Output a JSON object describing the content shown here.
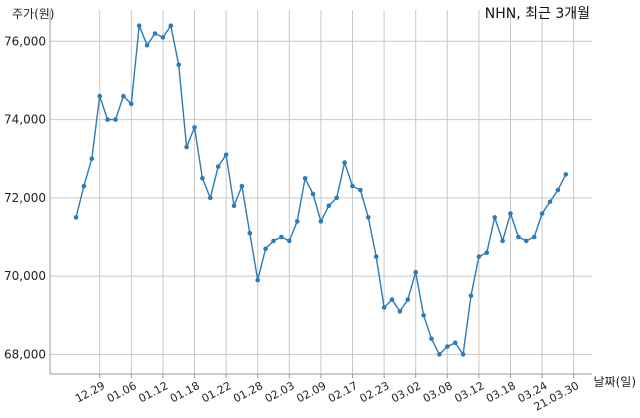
{
  "chart_data": {
    "type": "line",
    "title": "NHN, 최근 3개월",
    "ylabel": "주가(원)",
    "xlabel": "날짜(일)",
    "ylim": [
      67500,
      76800
    ],
    "yticks": [
      68000,
      70000,
      72000,
      74000,
      76000
    ],
    "ytick_labels": [
      "68,000",
      "70,000",
      "72,000",
      "74,000",
      "76,000"
    ],
    "grid": true,
    "series_color": "#2b7bb9",
    "xtick_labels": [
      "12.29",
      "01.06",
      "01.12",
      "01.18",
      "01.22",
      "01.28",
      "02.03",
      "02.09",
      "02.17",
      "02.23",
      "03.02",
      "03.08",
      "03.12",
      "03.18",
      "03.24",
      "21.03.30"
    ],
    "xtick_indices": [
      3,
      7,
      11,
      15,
      19,
      23,
      27,
      31,
      35,
      39,
      43,
      47,
      51,
      55,
      59,
      63
    ],
    "series": [
      {
        "values": [
          71500,
          72300,
          73000,
          74600,
          74000,
          74000,
          74600,
          74400,
          76400,
          75900,
          76200,
          76100,
          76400,
          75400,
          73300,
          73800,
          72500,
          72000,
          72800,
          73100,
          71800,
          72300,
          71100,
          69900,
          70700,
          70900,
          71000,
          70900,
          71400,
          72500,
          72100,
          71400,
          71800,
          72000,
          72900,
          72300,
          72200,
          71500,
          70500,
          69200,
          69400,
          69100,
          69400,
          70100,
          69000,
          68400,
          68000,
          68200,
          68300,
          68000,
          69500,
          70500,
          70600,
          71500,
          70900,
          71600,
          71000,
          70900,
          71000,
          71600,
          71900,
          72200,
          72600
        ]
      }
    ]
  }
}
